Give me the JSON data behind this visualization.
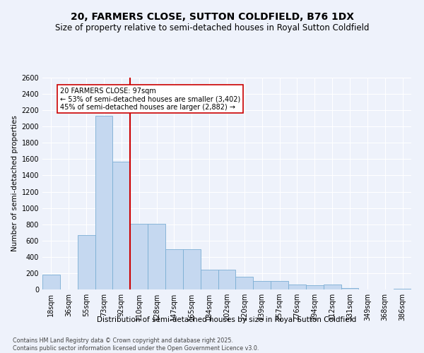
{
  "title1": "20, FARMERS CLOSE, SUTTON COLDFIELD, B76 1DX",
  "title2": "Size of property relative to semi-detached houses in Royal Sutton Coldfield",
  "xlabel": "Distribution of semi-detached houses by size in Royal Sutton Coldfield",
  "ylabel": "Number of semi-detached properties",
  "categories": [
    "18sqm",
    "36sqm",
    "55sqm",
    "73sqm",
    "92sqm",
    "110sqm",
    "128sqm",
    "147sqm",
    "165sqm",
    "184sqm",
    "202sqm",
    "220sqm",
    "239sqm",
    "257sqm",
    "276sqm",
    "294sqm",
    "312sqm",
    "331sqm",
    "349sqm",
    "368sqm",
    "386sqm"
  ],
  "values": [
    185,
    0,
    670,
    2130,
    1570,
    810,
    810,
    490,
    490,
    240,
    240,
    155,
    100,
    100,
    60,
    55,
    60,
    15,
    0,
    0,
    10
  ],
  "bar_color": "#c5d8f0",
  "bar_edge_color": "#7baed4",
  "vline_color": "#cc0000",
  "annotation_text": "20 FARMERS CLOSE: 97sqm\n← 53% of semi-detached houses are smaller (3,402)\n45% of semi-detached houses are larger (2,882) →",
  "annotation_box_color": "#ffffff",
  "annotation_box_edge": "#cc0000",
  "ylim": [
    0,
    2600
  ],
  "yticks": [
    0,
    200,
    400,
    600,
    800,
    1000,
    1200,
    1400,
    1600,
    1800,
    2000,
    2200,
    2400,
    2600
  ],
  "footer": "Contains HM Land Registry data © Crown copyright and database right 2025.\nContains public sector information licensed under the Open Government Licence v3.0.",
  "bg_color": "#eef2fb",
  "plot_bg_color": "#eef2fb",
  "grid_color": "#ffffff",
  "title1_fontsize": 10,
  "title2_fontsize": 8.5,
  "tick_fontsize": 7,
  "ylabel_fontsize": 7.5,
  "xlabel_fontsize": 7.5
}
